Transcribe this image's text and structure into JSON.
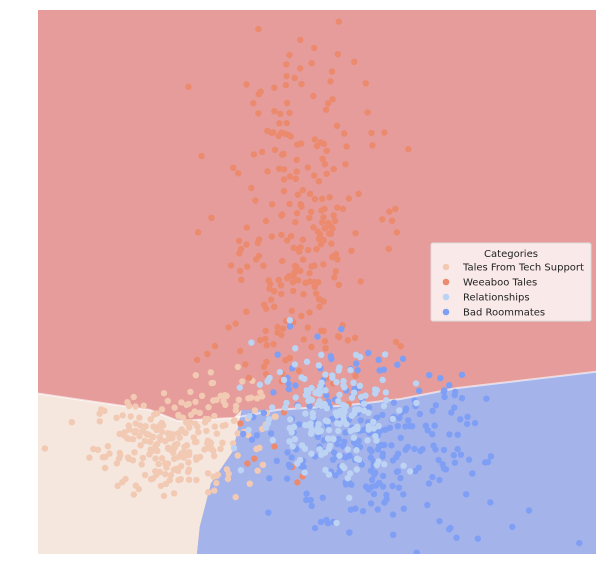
{
  "chart_data": {
    "type": "scatter",
    "title": "",
    "xlabel": "",
    "ylabel": "",
    "axes_visible": false,
    "grid": false,
    "xlim": [
      0,
      100
    ],
    "ylim": [
      0,
      100
    ],
    "legend": {
      "title": "Categories",
      "placement": "right",
      "entries": [
        "Tales From Tech Support",
        "Weeaboo Tales",
        "Relationships",
        "Bad Roommates"
      ]
    },
    "colors": {
      "Tales From Tech Support": "#f2c9b3",
      "Weeaboo Tales": "#ec8a6e",
      "Relationships": "#bcd3f4",
      "Bad Roommates": "#7f9ff5"
    },
    "regions": {
      "background_top": "#e59c9a",
      "bottom_left": "#f5e6de",
      "bottom_right": "#a5b3eb",
      "boundary_left": [
        [
          0,
          29.5
        ],
        [
          10,
          28
        ],
        [
          20,
          26.5
        ],
        [
          25,
          24.5
        ],
        [
          35,
          25
        ],
        [
          43,
          26.5
        ],
        [
          55,
          27.3
        ],
        [
          65,
          28.5
        ],
        [
          75,
          30.5
        ],
        [
          100,
          33.5
        ]
      ],
      "boundary_bottom": [
        [
          36.5,
          26.5
        ],
        [
          35,
          19
        ],
        [
          31,
          13
        ],
        [
          29,
          5
        ],
        [
          28.5,
          0
        ]
      ]
    },
    "series": [
      {
        "name": "Tales From Tech Support",
        "clusters": [
          {
            "cx": 24,
            "cy": 20,
            "sx": 7,
            "sy": 4.5,
            "n": 210
          },
          {
            "cx": 33,
            "cy": 27,
            "sx": 4,
            "sy": 4,
            "n": 40
          }
        ]
      },
      {
        "name": "Weeaboo Tales",
        "clusters": [
          {
            "cx": 46,
            "cy": 58,
            "sx": 7,
            "sy": 17,
            "n": 260
          }
        ],
        "outliers": [
          [
            47,
            94.5
          ],
          [
            44.5,
            90
          ],
          [
            46,
            87.5
          ],
          [
            39.5,
            81
          ],
          [
            45,
            77
          ],
          [
            50,
            75
          ],
          [
            35,
            71
          ],
          [
            48,
            30
          ]
        ]
      },
      {
        "name": "Relationships",
        "clusters": [
          {
            "cx": 53,
            "cy": 26,
            "sx": 7,
            "sy": 6,
            "n": 170
          }
        ]
      },
      {
        "name": "Bad Roommates",
        "clusters": [
          {
            "cx": 60,
            "cy": 19,
            "sx": 10,
            "sy": 8,
            "n": 260
          }
        ],
        "outliers": [
          [
            85,
            5
          ],
          [
            97,
            2
          ],
          [
            88,
            8
          ],
          [
            75,
            3
          ]
        ]
      }
    ]
  }
}
